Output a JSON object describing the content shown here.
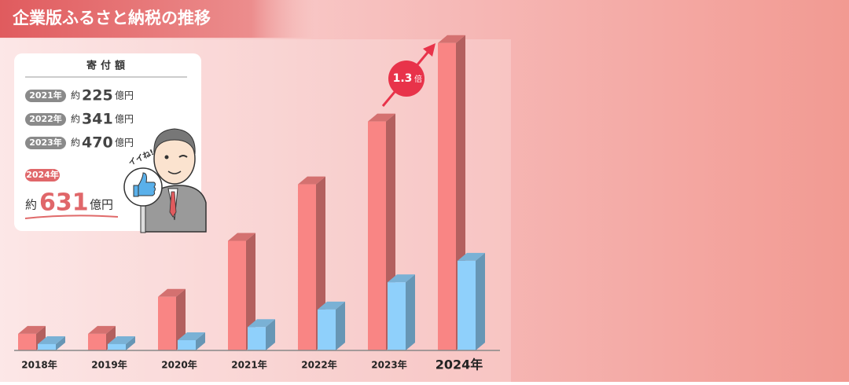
{
  "chart_data": {
    "type": "bar3d",
    "title": "企業版ふるさと納税の推移",
    "categories": [
      "2018年",
      "2019年",
      "2020年",
      "2021年",
      "2022年",
      "2023年",
      "2024年"
    ],
    "series": [
      {
        "color": "#f98584",
        "values": [
          34,
          34,
          110,
          225,
          341,
          470,
          631
        ]
      },
      {
        "color": "#8fd0fb",
        "values": [
          13,
          13,
          21,
          48,
          84,
          140,
          184
        ]
      }
    ],
    "ylim": [
      0,
      700
    ],
    "callout": {
      "value": "1.3",
      "unit": "倍"
    }
  },
  "info_box": {
    "title": "寄付額",
    "rows": [
      {
        "year": "2021年",
        "prefix": "約",
        "amount": 225,
        "unit": "億円"
      },
      {
        "year": "2022年",
        "prefix": "約",
        "amount": 341,
        "unit": "億円"
      },
      {
        "year": "2023年",
        "prefix": "約",
        "amount": 470,
        "unit": "億円"
      }
    ],
    "highlight": {
      "year": "2024年",
      "prefix": "約",
      "amount": 631,
      "unit": "億円"
    },
    "sign": "イイね!"
  }
}
